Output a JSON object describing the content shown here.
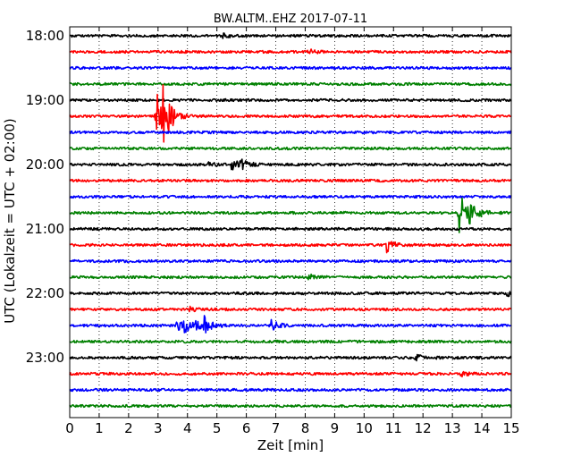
{
  "chart_data": {
    "type": "line",
    "title": "BW.ALTM..EHZ 2017-07-11",
    "xlabel": "Zeit  [min]",
    "ylabel": "UTC (Lokalzeit = UTC + 02:00)",
    "xlim": [
      0,
      15
    ],
    "x_ticks": [
      "0",
      "1",
      "2",
      "3",
      "4",
      "5",
      "6",
      "7",
      "8",
      "9",
      "10",
      "11",
      "12",
      "13",
      "14",
      "15"
    ],
    "y_tick_labels": [
      "18:00",
      "19:00",
      "20:00",
      "21:00",
      "22:00",
      "23:00"
    ],
    "grid": "vertical dotted at each minute",
    "trace_interval_min": 15,
    "trace_colors": [
      "#000000",
      "#ff0000",
      "#0000ff",
      "#008000"
    ],
    "traces": [
      {
        "start": "18:00",
        "events": [
          {
            "x": 5.2,
            "amp": 2
          }
        ]
      },
      {
        "start": "18:15",
        "events": [
          {
            "x": 8.05,
            "amp": 4
          }
        ]
      },
      {
        "start": "18:30",
        "events": []
      },
      {
        "start": "18:45",
        "events": []
      },
      {
        "start": "19:00",
        "events": []
      },
      {
        "start": "19:15",
        "events": [
          {
            "x": 2.9,
            "amp": 35
          },
          {
            "x": 3.15,
            "amp": 35
          }
        ]
      },
      {
        "start": "19:30",
        "events": []
      },
      {
        "start": "19:45",
        "events": []
      },
      {
        "start": "20:00",
        "events": [
          {
            "x": 5.5,
            "amp": 7
          },
          {
            "x": 5.8,
            "amp": 6
          },
          {
            "x": 4.7,
            "amp": 2
          }
        ]
      },
      {
        "start": "20:15",
        "events": []
      },
      {
        "start": "20:30",
        "events": []
      },
      {
        "start": "20:45",
        "events": [
          {
            "x": 13.2,
            "amp": 28
          },
          {
            "x": 13.55,
            "amp": 18
          }
        ]
      },
      {
        "start": "21:00",
        "events": []
      },
      {
        "start": "21:15",
        "events": [
          {
            "x": 10.75,
            "amp": 8
          }
        ]
      },
      {
        "start": "21:30",
        "events": []
      },
      {
        "start": "21:45",
        "events": [
          {
            "x": 8.1,
            "amp": 4
          }
        ]
      },
      {
        "start": "22:00",
        "events": [
          {
            "x": 14.85,
            "amp": 3
          }
        ]
      },
      {
        "start": "22:15",
        "events": [
          {
            "x": 4.0,
            "amp": 3
          }
        ]
      },
      {
        "start": "22:30",
        "events": [
          {
            "x": 3.65,
            "amp": 9
          },
          {
            "x": 3.85,
            "amp": 7
          },
          {
            "x": 4.25,
            "amp": 6
          },
          {
            "x": 4.55,
            "amp": 9
          },
          {
            "x": 6.85,
            "amp": 6
          }
        ]
      },
      {
        "start": "22:45",
        "events": []
      },
      {
        "start": "23:00",
        "events": [
          {
            "x": 11.75,
            "amp": 5
          }
        ]
      },
      {
        "start": "23:15",
        "events": [
          {
            "x": 13.3,
            "amp": 3
          }
        ]
      },
      {
        "start": "23:30",
        "events": []
      },
      {
        "start": "23:45",
        "events": []
      }
    ]
  }
}
